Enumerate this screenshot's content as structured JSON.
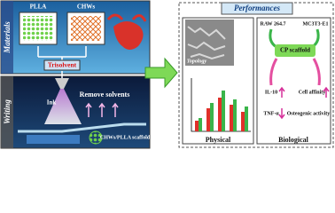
{
  "materials": {
    "label": "Materials",
    "items": [
      "PLLA",
      "CHWs"
    ],
    "solvent": "Trisolvent"
  },
  "writing": {
    "label": "Writing",
    "ink": "Ink",
    "process": "Remove solvents",
    "product": "CHWs/PLLA scaffold"
  },
  "performances": {
    "title": "Performances",
    "physical": {
      "label": "Physical",
      "image_label": "Topology"
    },
    "biological": {
      "label": "Biological",
      "cells": [
        "RAW 264.7",
        "MC3T3-E1"
      ],
      "scaffold": "CP scaffold",
      "effects": [
        "IL-10",
        "TNF-α",
        "Cell affinity",
        "Osteogenic activity"
      ]
    }
  }
}
